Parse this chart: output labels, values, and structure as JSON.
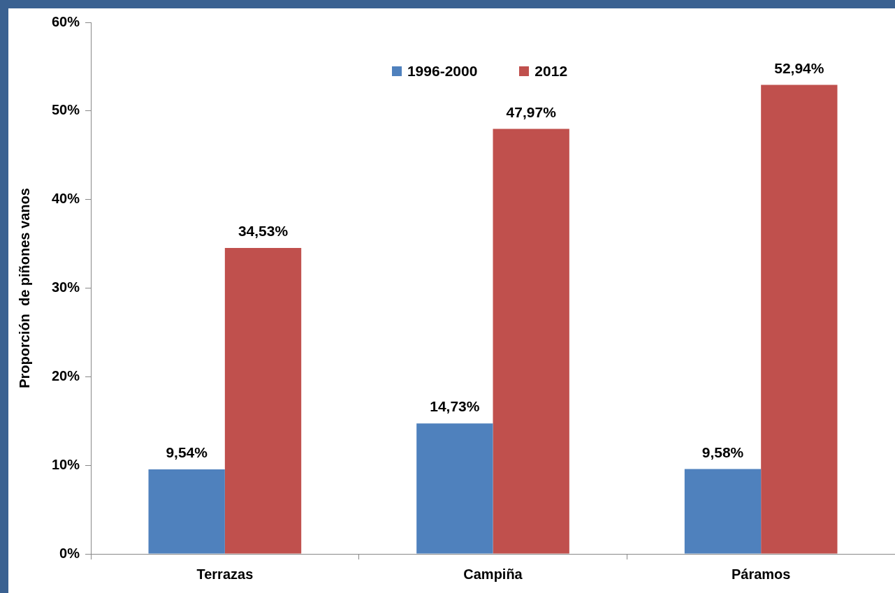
{
  "chart_data": {
    "type": "bar",
    "ylabel": "Proporción  de piñones vanos",
    "categories": [
      "Terrazas",
      "Campiña",
      "Páramos"
    ],
    "series": [
      {
        "name": "1996-2000",
        "color": "#4f81bd",
        "values": [
          9.54,
          14.73,
          9.58
        ],
        "value_labels": [
          "9,54%",
          "14,73%",
          "9,58%"
        ]
      },
      {
        "name": "2012",
        "color": "#c0504d",
        "values": [
          34.53,
          47.97,
          52.94
        ],
        "value_labels": [
          "34,53%",
          "47,97%",
          "52,94%"
        ]
      }
    ],
    "ylim": [
      0,
      60
    ],
    "yticks": [
      {
        "value": 0,
        "label": "0%"
      },
      {
        "value": 10,
        "label": "10%"
      },
      {
        "value": 20,
        "label": "20%"
      },
      {
        "value": 30,
        "label": "30%"
      },
      {
        "value": 40,
        "label": "40%"
      },
      {
        "value": 50,
        "label": "50%"
      },
      {
        "value": 60,
        "label": "60%"
      }
    ],
    "grid": false,
    "legend": "top"
  }
}
